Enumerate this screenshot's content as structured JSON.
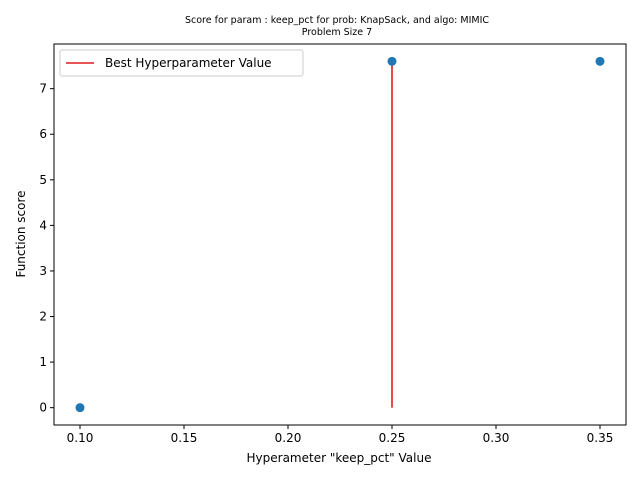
{
  "chart_data": {
    "type": "scatter",
    "title": "Score for param : keep_pct for prob: KnapSack, and algo: MIMIC",
    "subtitle": "Problem Size 7",
    "xlabel": "Hyperameter \"keep_pct\" Value",
    "ylabel": "Function score",
    "xlim": [
      0.0875,
      0.3625
    ],
    "ylim": [
      -0.38,
      7.98
    ],
    "x_ticks": [
      0.1,
      0.15,
      0.2,
      0.25,
      0.3,
      0.35
    ],
    "x_tick_labels": [
      "0.10",
      "0.15",
      "0.20",
      "0.25",
      "0.30",
      "0.35"
    ],
    "y_ticks": [
      0,
      1,
      2,
      3,
      4,
      5,
      6,
      7
    ],
    "y_tick_labels": [
      "0",
      "1",
      "2",
      "3",
      "4",
      "5",
      "6",
      "7"
    ],
    "grid": false,
    "legend_position": "top-left",
    "series": [
      {
        "kind": "scatter",
        "color": "#1f77b4",
        "points": [
          {
            "x": 0.1,
            "y": 0.0
          },
          {
            "x": 0.25,
            "y": 7.6
          },
          {
            "x": 0.35,
            "y": 7.6
          }
        ]
      },
      {
        "kind": "vline",
        "name": "Best Hyperparameter Value",
        "color": "#e41a1c",
        "x": 0.25,
        "y_start": 0.0,
        "y_end": 7.6
      }
    ]
  }
}
